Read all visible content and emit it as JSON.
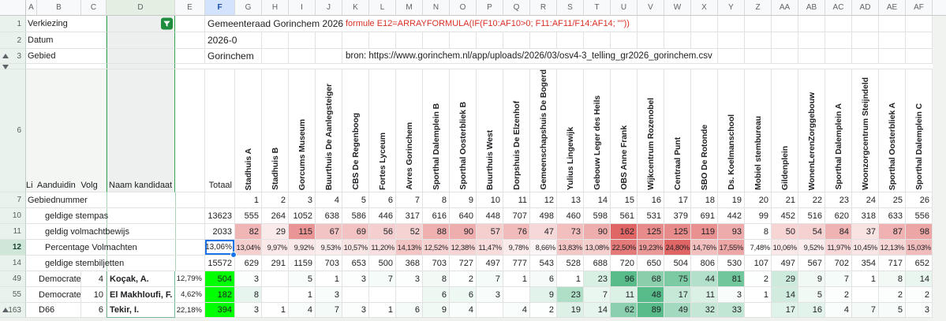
{
  "header": {
    "columns": [
      "A",
      "B",
      "C",
      "D",
      "E",
      "F",
      "G",
      "H",
      "I",
      "J",
      "K",
      "L",
      "M",
      "N",
      "O",
      "P",
      "Q",
      "R",
      "S",
      "T",
      "U",
      "V",
      "W",
      "X",
      "Y",
      "Z",
      "AA",
      "AB",
      "AC",
      "AD",
      "AE",
      "AF"
    ],
    "selected_column": "F",
    "filter_column": "D"
  },
  "meta_rows": [
    {
      "num": "1",
      "label": "Verkiezing",
      "value": "Gemeenteraad Gorinchem 2026",
      "note": "formule E12=ARRAYFORMULA(IF(F10:AF10>0; F11:AF11/F14:AF14; \"\"))"
    },
    {
      "num": "2",
      "label": "Datum",
      "value": "2026-0",
      "note": ""
    },
    {
      "num": "3",
      "label": "Gebied",
      "value": "Gorinchem",
      "note": "bron: https://www.gorinchem.nl/app/uploads/2026/03/osv4-3_telling_gr2026_gorinchem.csv"
    }
  ],
  "table": {
    "row6": {
      "num": "6",
      "col_a": "Li",
      "col_b": "Aanduidin",
      "col_c": "Volg",
      "col_d": "Naam kandidaat",
      "col_f": "Totaal"
    },
    "stations": [
      {
        "nr": "1",
        "name": "Stadhuis A"
      },
      {
        "nr": "2",
        "name": "Stadhuis B"
      },
      {
        "nr": "3",
        "name": "Gorcums Museum"
      },
      {
        "nr": "4",
        "name": "Buurthuis De Aanlegsteiger"
      },
      {
        "nr": "5",
        "name": "CBS De Regenboog"
      },
      {
        "nr": "6",
        "name": "Fortes Lyceum"
      },
      {
        "nr": "7",
        "name": "Avres Gorinchem"
      },
      {
        "nr": "8",
        "name": "Sporthal Dalemplein B"
      },
      {
        "nr": "9",
        "name": "Sporthal Oosterbliek B"
      },
      {
        "nr": "10",
        "name": "Buurthuis West"
      },
      {
        "nr": "11",
        "name": "Dorpshuis De Elzenhof"
      },
      {
        "nr": "12",
        "name": "Gemeenschapshuis De Bogerd"
      },
      {
        "nr": "13",
        "name": "Yulius Lingewijk"
      },
      {
        "nr": "14",
        "name": "Gebouw Leger des Heils"
      },
      {
        "nr": "15",
        "name": "OBS Anne Frank"
      },
      {
        "nr": "16",
        "name": "Wijkcentrum Rozenobel"
      },
      {
        "nr": "17",
        "name": "Centraal Punt"
      },
      {
        "nr": "18",
        "name": "SBO De Rotonde"
      },
      {
        "nr": "19",
        "name": "Ds. Koelmanschool"
      },
      {
        "nr": "20",
        "name": "Mobiel stembureau"
      },
      {
        "nr": "21",
        "name": "Gildenplein"
      },
      {
        "nr": "22",
        "name": "WonenLerenZorggebouw"
      },
      {
        "nr": "23",
        "name": "Sporthal Dalemplein A"
      },
      {
        "nr": "24",
        "name": "Woonzorgcentrum Steijndeld"
      },
      {
        "nr": "25",
        "name": "Sporthal Oosterbliek A"
      },
      {
        "nr": "26",
        "name": "Sporthal Dalemplein C"
      }
    ],
    "grid_rows": [
      {
        "num": "7",
        "label": "Gebiednummer",
        "indent": false,
        "total": "",
        "scale": "none",
        "small": false,
        "selected": false,
        "cells": [
          "1",
          "2",
          "3",
          "4",
          "5",
          "6",
          "7",
          "8",
          "9",
          "10",
          "11",
          "12",
          "13",
          "14",
          "15",
          "16",
          "17",
          "18",
          "19",
          "20",
          "21",
          "22",
          "23",
          "24",
          "25",
          "26"
        ]
      },
      {
        "num": "10",
        "label": "geldige stempas",
        "indent": true,
        "total": "13623",
        "scale": "none",
        "small": false,
        "selected": false,
        "cells": [
          "555",
          "264",
          "1052",
          "638",
          "586",
          "446",
          "317",
          "616",
          "640",
          "448",
          "707",
          "498",
          "460",
          "598",
          "561",
          "531",
          "379",
          "691",
          "442",
          "99",
          "452",
          "516",
          "620",
          "318",
          "633",
          "556"
        ]
      },
      {
        "num": "11",
        "label": "geldig volmachtbewijs",
        "indent": true,
        "total": "2033",
        "scale": "red",
        "small": false,
        "selected": false,
        "cells": [
          "82",
          "29",
          "115",
          "67",
          "69",
          "56",
          "52",
          "88",
          "90",
          "57",
          "76",
          "47",
          "73",
          "90",
          "162",
          "125",
          "125",
          "119",
          "93",
          "8",
          "50",
          "54",
          "84",
          "37",
          "87",
          "98"
        ]
      },
      {
        "num": "12",
        "label": "Percentage Volmachten",
        "indent": true,
        "total": "13,06%",
        "scale": "red",
        "small": true,
        "selected": true,
        "cells": [
          "13,04%",
          "9,97%",
          "9,92%",
          "9,53%",
          "10,57%",
          "11,20%",
          "14,13%",
          "12,52%",
          "12,38%",
          "11,47%",
          "9,78%",
          "8,66%",
          "13,83%",
          "13,08%",
          "22,50%",
          "19,23%",
          "24,80%",
          "14,76%",
          "17,55%",
          "7,48%",
          "10,06%",
          "9,52%",
          "11,97%",
          "10,45%",
          "12,13%",
          "15,03%"
        ]
      },
      {
        "num": "14",
        "label": "geldige stembiljetten",
        "indent": true,
        "total": "15572",
        "scale": "none",
        "small": false,
        "selected": false,
        "cells": [
          "629",
          "291",
          "1159",
          "703",
          "653",
          "500",
          "368",
          "703",
          "727",
          "497",
          "777",
          "543",
          "528",
          "688",
          "720",
          "650",
          "504",
          "806",
          "530",
          "107",
          "497",
          "567",
          "702",
          "354",
          "717",
          "652"
        ]
      }
    ],
    "candidate_rows": [
      {
        "num": "49",
        "party": "Democrate",
        "volg": "4",
        "name": "Koçak, A.",
        "pct": "12,79%",
        "total": "504",
        "collapse_icon": false,
        "cells": [
          "3",
          "",
          "5",
          "1",
          "3",
          "7",
          "3",
          "8",
          "2",
          "7",
          "1",
          "6",
          "1",
          "23",
          "96",
          "68",
          "75",
          "44",
          "81",
          "2",
          "29",
          "9",
          "7",
          "1",
          "8",
          "14"
        ]
      },
      {
        "num": "55",
        "party": "Democrate",
        "volg": "10",
        "name": "El Makhloufi, F.",
        "pct": "4,62%",
        "total": "182",
        "collapse_icon": false,
        "cells": [
          "8",
          "",
          "1",
          "3",
          "",
          "",
          "",
          "6",
          "6",
          "3",
          "",
          "9",
          "23",
          "7",
          "11",
          "48",
          "17",
          "11",
          "3",
          "1",
          "14",
          "5",
          "2",
          "",
          "2",
          "2"
        ]
      },
      {
        "num": "163",
        "party": "D66",
        "volg": "6",
        "name": "Tekir, I.",
        "pct": "22,18%",
        "total": "394",
        "collapse_icon": true,
        "cells": [
          "3",
          "1",
          "4",
          "7",
          "3",
          "1",
          "6",
          "9",
          "4",
          "",
          "4",
          "2",
          "19",
          "14",
          "62",
          "89",
          "49",
          "32",
          "33",
          "",
          "17",
          "16",
          "4",
          "7",
          "5",
          "3"
        ]
      }
    ]
  },
  "colors": {
    "accent_blue": "#1a73e8",
    "filter_green": "#1e8e3e",
    "red_scale": "#e06666",
    "green_scale": "#57bb8a",
    "total_highlight": "#00ff00",
    "formula_text": "#d93025",
    "selected_col_header": "#d3e3fd",
    "gutter_bg": "#e9f2ec"
  }
}
